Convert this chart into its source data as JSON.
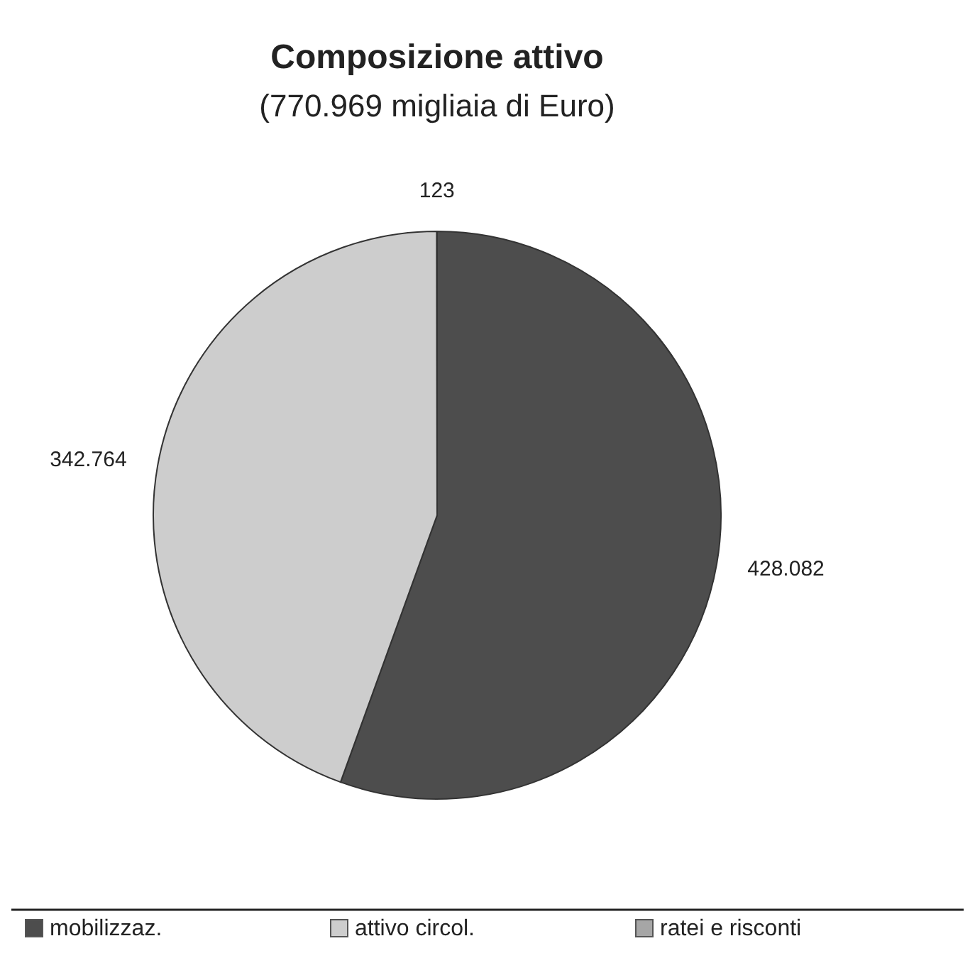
{
  "chart_data": {
    "type": "pie",
    "title": "Composizione attivo",
    "subtitle": "(770.969 migliaia di Euro)",
    "categories": [
      "mobilizzaz.",
      "attivo circol.",
      "ratei e risconti"
    ],
    "values": [
      428082,
      342764,
      123
    ],
    "value_labels": [
      "428.082",
      "342.764",
      "123"
    ],
    "colors": [
      "#4d4d4d",
      "#cdcdcd",
      "#a6a6a6"
    ],
    "legend": "bottom"
  }
}
